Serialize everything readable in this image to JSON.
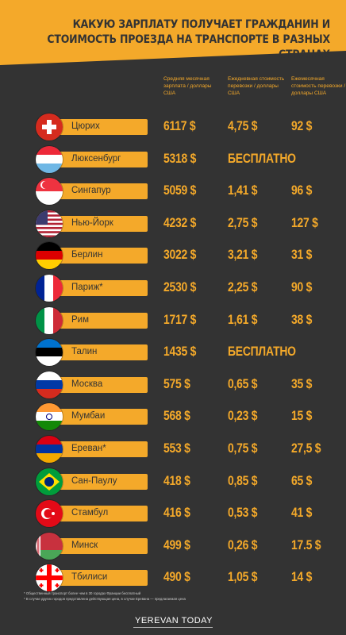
{
  "title_line1": "КАКУЮ ЗАРПЛАТУ ПОЛУЧАЕТ ГРАЖДАНИН И",
  "title_line2": "СТОИМОСТЬ ПРОЕЗДА НА ТРАНСПОРТЕ В РАЗНЫХ СТРАНАХ",
  "columns": {
    "salary": "Средняя месячная зарплата / доллары США",
    "daily": "Ежедневная стоимость перевозки / доллары США",
    "monthly": "Ежемесячная стоимость перевозки / доллары США"
  },
  "rows": [
    {
      "city": "Цюрих",
      "flag": "switzerland-flag",
      "salary": "6117 $",
      "daily": "4,75 $",
      "monthly": "92 $"
    },
    {
      "city": "Люксенбург",
      "flag": "luxembourg-flag",
      "salary": "5318 $",
      "free": "БЕСПЛАТНО"
    },
    {
      "city": "Сингапур",
      "flag": "singapore-flag",
      "salary": "5059 $",
      "daily": "1,41 $",
      "monthly": "96 $"
    },
    {
      "city": "Нью-Йорк",
      "flag": "usa-flag",
      "salary": "4232 $",
      "daily": "2,75 $",
      "monthly": "127 $"
    },
    {
      "city": "Берлин",
      "flag": "germany-flag",
      "salary": "3022 $",
      "daily": "3,21 $",
      "monthly": "31 $"
    },
    {
      "city": "Париж*",
      "flag": "france-flag",
      "salary": "2530 $",
      "daily": "2,25 $",
      "monthly": "90 $"
    },
    {
      "city": "Рим",
      "flag": "italy-flag",
      "salary": "1717 $",
      "daily": "1,61 $",
      "monthly": "38 $"
    },
    {
      "city": "Талин",
      "flag": "estonia-flag",
      "salary": "1435 $",
      "free": "БЕСПЛАТНО"
    },
    {
      "city": "Москва",
      "flag": "russia-flag",
      "salary": "575 $",
      "daily": "0,65 $",
      "monthly": "35 $"
    },
    {
      "city": "Мумбаи",
      "flag": "india-flag",
      "salary": "568 $",
      "daily": "0,23 $",
      "monthly": "15 $"
    },
    {
      "city": "Ереван*",
      "flag": "armenia-flag",
      "salary": "553 $",
      "daily": "0,75 $",
      "monthly": "27,5 $"
    },
    {
      "city": "Сан-Паулу",
      "flag": "brazil-flag",
      "salary": "418 $",
      "daily": "0,85 $",
      "monthly": "65 $"
    },
    {
      "city": "Стамбул",
      "flag": "turkey-flag",
      "salary": "416 $",
      "daily": "0,53 $",
      "monthly": "41 $"
    },
    {
      "city": "Минск",
      "flag": "belarus-flag",
      "salary": "499 $",
      "daily": "0,26 $",
      "monthly": "17.5 $"
    },
    {
      "city": "Тбилиси",
      "flag": "georgia-flag",
      "salary": "490 $",
      "daily": "1,05 $",
      "monthly": "14 $"
    }
  ],
  "footnote1": "* Общественный транспорт более чем в 30 городах Франции бесплатный",
  "footnote2": "* В случае других городов представлена действующая цена, в случае Еревана — предлагаемая цена",
  "logo": "YEREVAN TODAY",
  "colors": {
    "accent": "#f4a92a",
    "background": "#333333"
  }
}
